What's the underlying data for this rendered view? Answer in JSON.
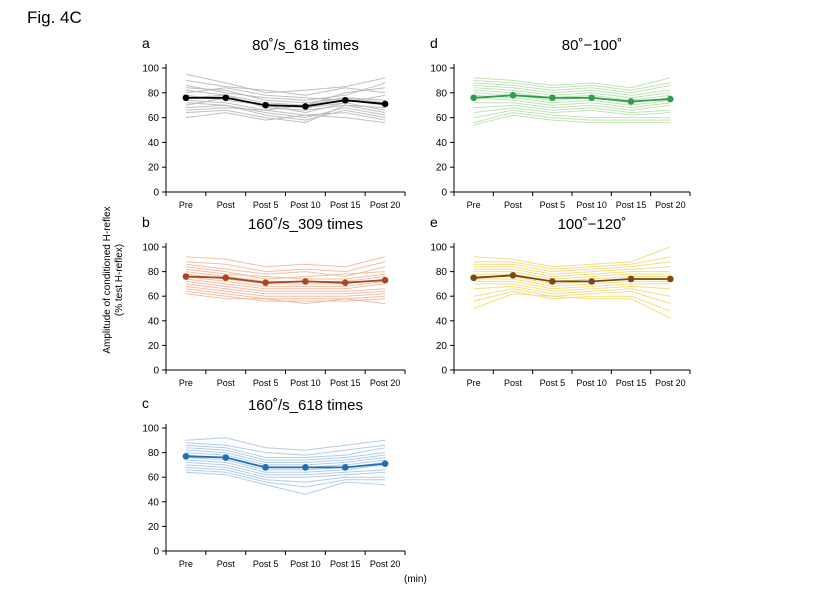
{
  "figure_label": "Fig. 4C",
  "ylabel_line1": "Amplitude of conditioned H-reflex",
  "ylabel_line2": "(% test H-reflex)",
  "x_unit": "(min)",
  "chart_data": [
    {
      "type": "line",
      "letter": "a",
      "title": "80˚/s_618 times",
      "categories": [
        "Pre",
        "Post",
        "Post 5",
        "Post 10",
        "Post 15",
        "Post 20"
      ],
      "ylim": [
        0,
        100
      ],
      "yticks": [
        0,
        20,
        40,
        60,
        80,
        100
      ],
      "mean_color": "#000000",
      "individual_color": "#b8b8b8",
      "mean": [
        76,
        76,
        70,
        69,
        74,
        71
      ],
      "individuals": [
        [
          95,
          88,
          80,
          82,
          85,
          92
        ],
        [
          90,
          85,
          82,
          78,
          84,
          80
        ],
        [
          86,
          80,
          76,
          74,
          78,
          88
        ],
        [
          84,
          82,
          74,
          72,
          76,
          74
        ],
        [
          82,
          78,
          72,
          70,
          80,
          84
        ],
        [
          80,
          84,
          78,
          76,
          74,
          70
        ],
        [
          78,
          74,
          70,
          68,
          72,
          78
        ],
        [
          76,
          78,
          68,
          66,
          70,
          68
        ],
        [
          74,
          72,
          66,
          70,
          76,
          72
        ],
        [
          72,
          70,
          64,
          60,
          68,
          62
        ],
        [
          70,
          76,
          70,
          64,
          72,
          66
        ],
        [
          68,
          70,
          62,
          58,
          66,
          60
        ],
        [
          66,
          68,
          66,
          62,
          64,
          58
        ],
        [
          64,
          66,
          60,
          56,
          70,
          64
        ],
        [
          60,
          64,
          58,
          62,
          60,
          56
        ]
      ]
    },
    {
      "type": "line",
      "letter": "b",
      "title": "160˚/s_309 times",
      "categories": [
        "Pre",
        "Post",
        "Post 5",
        "Post 10",
        "Post 15",
        "Post 20"
      ],
      "ylim": [
        0,
        100
      ],
      "yticks": [
        0,
        20,
        40,
        60,
        80,
        100
      ],
      "mean_color": "#a5491f",
      "individual_color": "#f2b79a",
      "mean": [
        76,
        75,
        71,
        72,
        71,
        73
      ],
      "individuals": [
        [
          92,
          90,
          84,
          86,
          84,
          92
        ],
        [
          88,
          86,
          80,
          82,
          80,
          88
        ],
        [
          86,
          82,
          78,
          80,
          76,
          84
        ],
        [
          84,
          80,
          74,
          76,
          78,
          80
        ],
        [
          82,
          78,
          76,
          74,
          74,
          78
        ],
        [
          80,
          76,
          72,
          72,
          72,
          76
        ],
        [
          78,
          74,
          70,
          70,
          70,
          74
        ],
        [
          76,
          72,
          68,
          68,
          68,
          72
        ],
        [
          74,
          70,
          66,
          66,
          66,
          70
        ],
        [
          72,
          68,
          64,
          64,
          64,
          66
        ],
        [
          70,
          66,
          62,
          62,
          62,
          64
        ],
        [
          68,
          64,
          60,
          60,
          60,
          62
        ],
        [
          66,
          62,
          58,
          58,
          58,
          60
        ],
        [
          64,
          60,
          56,
          56,
          56,
          58
        ],
        [
          62,
          58,
          58,
          54,
          58,
          54
        ]
      ]
    },
    {
      "type": "line",
      "letter": "c",
      "title": "160˚/s_618 times",
      "categories": [
        "Pre",
        "Post",
        "Post 5",
        "Post 10",
        "Post 15",
        "Post 20"
      ],
      "ylim": [
        0,
        100
      ],
      "yticks": [
        0,
        20,
        40,
        60,
        80,
        100
      ],
      "mean_color": "#1f6fb3",
      "individual_color": "#a9c8e8",
      "mean": [
        77,
        76,
        68,
        68,
        68,
        71
      ],
      "individuals": [
        [
          90,
          92,
          84,
          82,
          86,
          90
        ],
        [
          88,
          86,
          80,
          78,
          82,
          86
        ],
        [
          86,
          84,
          76,
          76,
          78,
          84
        ],
        [
          84,
          82,
          74,
          74,
          76,
          80
        ],
        [
          82,
          80,
          72,
          72,
          74,
          78
        ],
        [
          80,
          78,
          70,
          70,
          72,
          76
        ],
        [
          78,
          76,
          68,
          68,
          70,
          74
        ],
        [
          76,
          74,
          66,
          66,
          68,
          72
        ],
        [
          74,
          72,
          64,
          64,
          66,
          70
        ],
        [
          72,
          70,
          62,
          62,
          64,
          66
        ],
        [
          70,
          68,
          60,
          60,
          62,
          64
        ],
        [
          68,
          66,
          58,
          56,
          60,
          60
        ],
        [
          66,
          64,
          56,
          52,
          58,
          58
        ],
        [
          64,
          62,
          54,
          46,
          56,
          54
        ]
      ]
    },
    {
      "type": "line",
      "letter": "d",
      "title": "80˚−100˚",
      "categories": [
        "Pre",
        "Post",
        "Post 5",
        "Post 10",
        "Post 15",
        "Post 20"
      ],
      "ylim": [
        0,
        100
      ],
      "yticks": [
        0,
        20,
        40,
        60,
        80,
        100
      ],
      "mean_color": "#2ca04a",
      "individual_color": "#b9dfae",
      "mean": [
        76,
        78,
        76,
        76,
        73,
        75
      ],
      "individuals": [
        [
          92,
          90,
          86,
          88,
          84,
          92
        ],
        [
          90,
          88,
          84,
          86,
          82,
          88
        ],
        [
          88,
          86,
          82,
          84,
          80,
          86
        ],
        [
          86,
          84,
          80,
          82,
          78,
          82
        ],
        [
          84,
          82,
          78,
          80,
          76,
          80
        ],
        [
          82,
          80,
          76,
          78,
          74,
          78
        ],
        [
          80,
          78,
          74,
          76,
          72,
          76
        ],
        [
          78,
          76,
          72,
          74,
          70,
          74
        ],
        [
          76,
          74,
          70,
          72,
          68,
          72
        ],
        [
          72,
          72,
          68,
          70,
          66,
          70
        ],
        [
          68,
          70,
          66,
          68,
          64,
          66
        ],
        [
          64,
          68,
          64,
          66,
          62,
          64
        ],
        [
          60,
          66,
          62,
          60,
          60,
          60
        ],
        [
          56,
          64,
          60,
          58,
          58,
          58
        ],
        [
          54,
          62,
          58,
          56,
          56,
          56
        ]
      ]
    },
    {
      "type": "line",
      "letter": "e",
      "title": "100˚−120˚",
      "categories": [
        "Pre",
        "Post",
        "Post 5",
        "Post 10",
        "Post 15",
        "Post 20"
      ],
      "ylim": [
        0,
        100
      ],
      "yticks": [
        0,
        20,
        40,
        60,
        80,
        100
      ],
      "mean_color": "#7a4a12",
      "individual_color": "#f3da77",
      "mean": [
        75,
        77,
        72,
        72,
        74,
        74
      ],
      "individuals": [
        [
          92,
          90,
          84,
          86,
          88,
          100
        ],
        [
          88,
          88,
          82,
          84,
          86,
          92
        ],
        [
          86,
          86,
          80,
          82,
          84,
          88
        ],
        [
          84,
          84,
          78,
          80,
          82,
          84
        ],
        [
          82,
          82,
          76,
          78,
          80,
          80
        ],
        [
          80,
          80,
          74,
          76,
          78,
          78
        ],
        [
          78,
          78,
          72,
          74,
          76,
          76
        ],
        [
          76,
          76,
          70,
          72,
          74,
          74
        ],
        [
          74,
          74,
          68,
          70,
          72,
          72
        ],
        [
          72,
          72,
          66,
          68,
          70,
          70
        ],
        [
          70,
          70,
          64,
          66,
          68,
          66
        ],
        [
          66,
          68,
          62,
          64,
          66,
          60
        ],
        [
          60,
          66,
          60,
          62,
          64,
          54
        ],
        [
          56,
          64,
          58,
          60,
          60,
          48
        ],
        [
          50,
          62,
          60,
          58,
          58,
          42
        ]
      ]
    }
  ]
}
